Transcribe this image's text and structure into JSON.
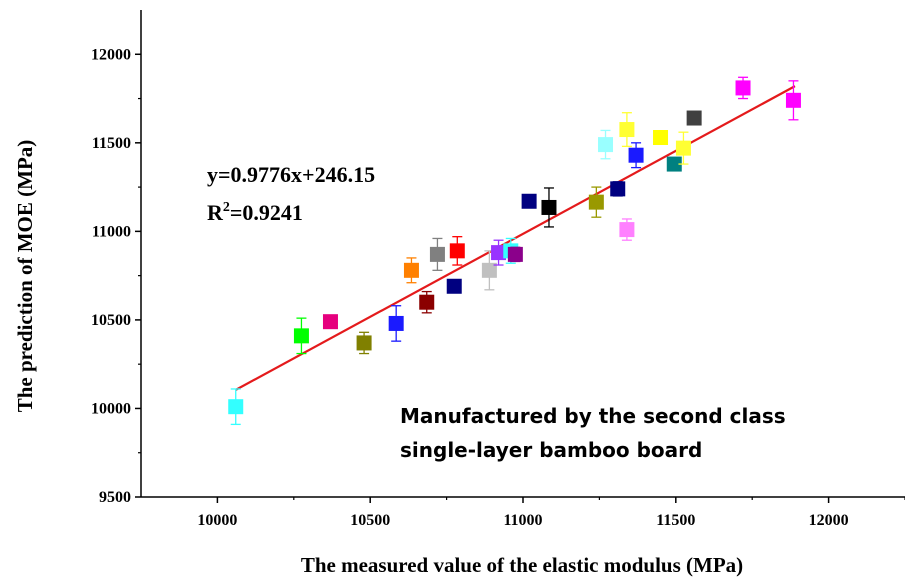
{
  "chart_data": {
    "type": "scatter",
    "xlabel": "The measured value of the elastic modulus (MPa)",
    "ylabel": "The prediction of MOE (MPa)",
    "xlim": [
      9750,
      12250
    ],
    "ylim": [
      9500,
      12250
    ],
    "xticks": [
      10000,
      10500,
      11000,
      11500,
      12000
    ],
    "yticks": [
      9500,
      10000,
      10500,
      11000,
      11500,
      12000
    ],
    "equation": "y=0.9776x+246.15",
    "r2_prefix": "R",
    "r2_sup": "2",
    "r2_value": "=0.9241",
    "note_line1": "Manufactured by the second class",
    "note_line2": "single-layer bamboo board",
    "fit_line": {
      "x": [
        10060,
        11890
      ],
      "y": [
        10105,
        11820
      ],
      "color": "#e41a1c"
    },
    "points": [
      {
        "x": 10060,
        "y": 10010,
        "err": 100,
        "color": "#33ffff"
      },
      {
        "x": 10275,
        "y": 10410,
        "err": 100,
        "color": "#00ff00"
      },
      {
        "x": 10370,
        "y": 10490,
        "err": 25,
        "color": "#e6007e"
      },
      {
        "x": 10480,
        "y": 10370,
        "err": 60,
        "color": "#808000"
      },
      {
        "x": 10585,
        "y": 10480,
        "err": 100,
        "color": "#1a1aff"
      },
      {
        "x": 10635,
        "y": 10780,
        "err": 70,
        "color": "#ff8000"
      },
      {
        "x": 10685,
        "y": 10600,
        "err": 60,
        "color": "#8b0000"
      },
      {
        "x": 10720,
        "y": 10870,
        "err": 90,
        "color": "#808080"
      },
      {
        "x": 10775,
        "y": 10690,
        "err": 30,
        "color": "#000080"
      },
      {
        "x": 10785,
        "y": 10890,
        "err": 80,
        "color": "#ff0000"
      },
      {
        "x": 10890,
        "y": 10780,
        "err": 110,
        "color": "#c0c0c0"
      },
      {
        "x": 10920,
        "y": 10880,
        "err": 70,
        "color": "#9933ff"
      },
      {
        "x": 10960,
        "y": 10890,
        "err": 70,
        "color": "#33ffff"
      },
      {
        "x": 10975,
        "y": 10870,
        "err": 40,
        "color": "#8b008b"
      },
      {
        "x": 11020,
        "y": 11170,
        "err": 30,
        "color": "#000080"
      },
      {
        "x": 11085,
        "y": 11135,
        "err": 110,
        "color": "#000000"
      },
      {
        "x": 11240,
        "y": 11165,
        "err": 85,
        "color": "#999900"
      },
      {
        "x": 11270,
        "y": 11490,
        "err": 80,
        "color": "#99ffff"
      },
      {
        "x": 11310,
        "y": 11240,
        "err": 40,
        "color": "#000080"
      },
      {
        "x": 11340,
        "y": 11010,
        "err": 60,
        "color": "#ff80ff"
      },
      {
        "x": 11340,
        "y": 11575,
        "err": 95,
        "color": "#ffff33"
      },
      {
        "x": 11370,
        "y": 11430,
        "err": 70,
        "color": "#1a1aff"
      },
      {
        "x": 11450,
        "y": 11530,
        "err": 30,
        "color": "#ffff00"
      },
      {
        "x": 11495,
        "y": 11380,
        "err": 25,
        "color": "#008080"
      },
      {
        "x": 11525,
        "y": 11470,
        "err": 90,
        "color": "#ffff33"
      },
      {
        "x": 11560,
        "y": 11640,
        "err": 30,
        "color": "#404040"
      },
      {
        "x": 11720,
        "y": 11810,
        "err": 60,
        "color": "#ff00ff"
      },
      {
        "x": 11885,
        "y": 11740,
        "err": 110,
        "color": "#ff00ff"
      }
    ]
  }
}
